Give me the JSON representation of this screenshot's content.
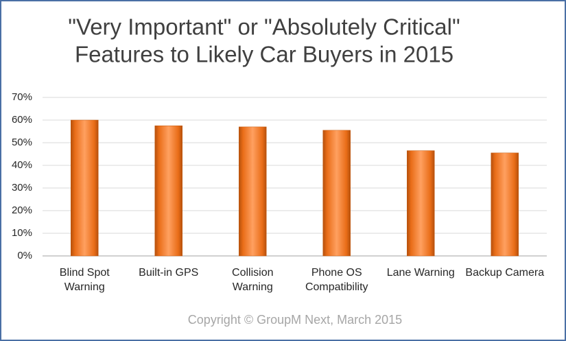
{
  "chart_data": {
    "type": "bar",
    "title": [
      "\"Very Important\" or \"Absolutely Critical\"",
      "Features to Likely Car Buyers in 2015"
    ],
    "categories": [
      [
        "Blind Spot",
        "Warning"
      ],
      [
        "Built-in GPS"
      ],
      [
        "Collision",
        "Warning"
      ],
      [
        "Phone OS",
        "Compatibility"
      ],
      [
        "Lane Warning"
      ],
      [
        "Backup Camera"
      ]
    ],
    "values": [
      60,
      57.5,
      57,
      55.5,
      46.5,
      45.5
    ],
    "color": "#f07a1e",
    "ylim": [
      0,
      70
    ],
    "yticks": [
      {
        "value": 0,
        "label": "0%"
      },
      {
        "value": 10,
        "label": "10%"
      },
      {
        "value": 20,
        "label": "20%"
      },
      {
        "value": 30,
        "label": "30%"
      },
      {
        "value": 40,
        "label": "40%"
      },
      {
        "value": 50,
        "label": "50%"
      },
      {
        "value": 60,
        "label": "60%"
      },
      {
        "value": 70,
        "label": "70%"
      }
    ],
    "grid": true,
    "footer": "Copyright © GroupM Next, March 2015"
  }
}
